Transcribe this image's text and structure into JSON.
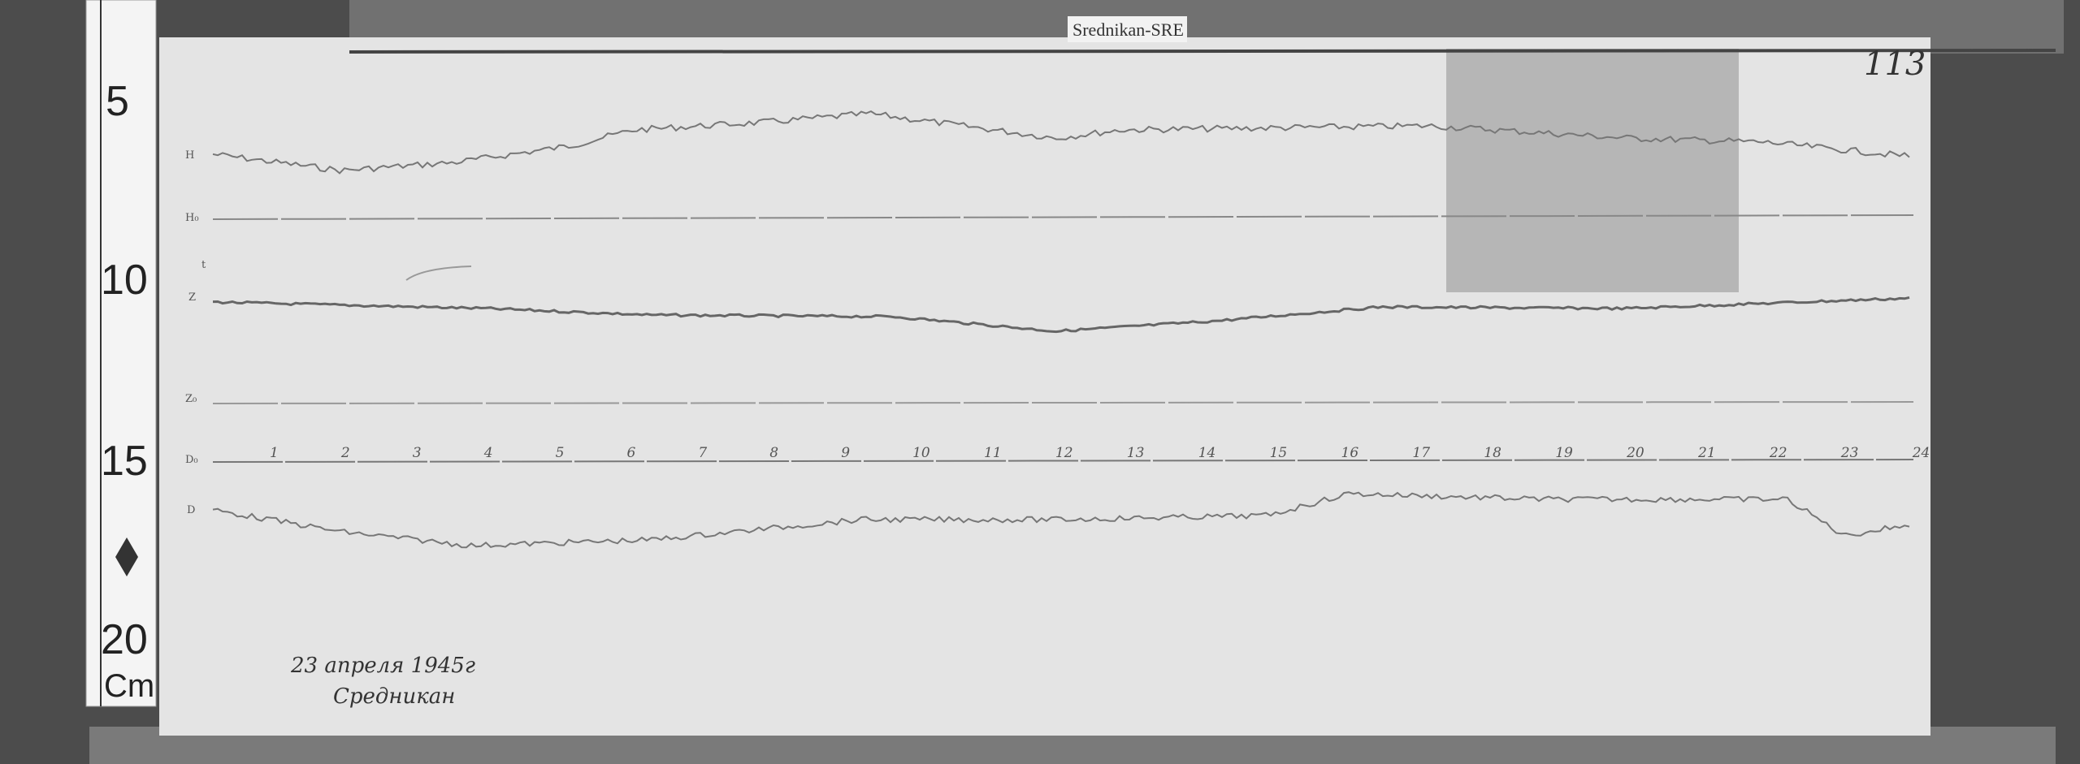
{
  "station_tag": "Srednikan-SRE",
  "sheet_number": "113",
  "ruler": {
    "marks": [
      "5",
      "10",
      "15",
      "20"
    ],
    "unit": "Cm"
  },
  "channels": {
    "h": "H",
    "h0": "H₀",
    "t": "t",
    "z": "Z",
    "z0": "Z₀",
    "d0": "D₀",
    "d": "D"
  },
  "hours": [
    "1",
    "2",
    "3",
    "4",
    "5",
    "6",
    "7",
    "8",
    "9",
    "10",
    "11",
    "12",
    "13",
    "14",
    "15",
    "16",
    "17",
    "18",
    "19",
    "20",
    "21",
    "22",
    "23",
    "24"
  ],
  "handwriting": {
    "date": "23 апреля 1945г",
    "place": "Средникан"
  },
  "colors": {
    "wood": "#4a4a4a",
    "paper": "#e6e6e6",
    "trace": "#777777"
  }
}
